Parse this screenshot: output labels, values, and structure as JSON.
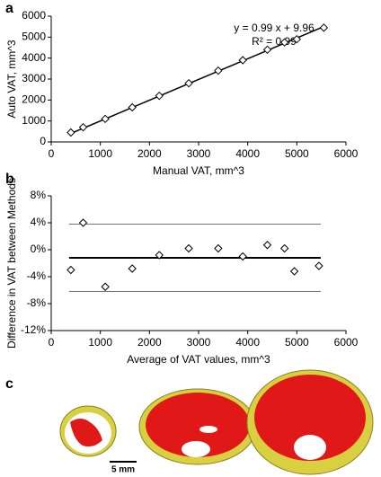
{
  "chart_data": [
    {
      "type": "scatter",
      "label": "a",
      "x_label": "Manual VAT, mm^3",
      "y_label": "Auto VAT, mm^3",
      "x": [
        400,
        650,
        1100,
        1650,
        2200,
        2800,
        3400,
        3900,
        4400,
        4750,
        5000,
        5550
      ],
      "values": [
        450,
        700,
        1100,
        1650,
        2200,
        2800,
        3400,
        3900,
        4400,
        4750,
        4900,
        5450
      ],
      "xlim": [
        0,
        6000
      ],
      "xticks": [
        0,
        1000,
        2000,
        3000,
        4000,
        5000,
        6000
      ],
      "ylim": [
        0,
        6000
      ],
      "yticks": [
        0,
        1000,
        2000,
        3000,
        4000,
        5000,
        6000
      ],
      "fit": {
        "equation": "y = 0.99 x + 9.96",
        "r2": "R² = 0.99",
        "slope": 0.99,
        "intercept": 9.96
      }
    },
    {
      "type": "scatter",
      "label": "b",
      "x_label": "Average of VAT values, mm^3",
      "y_label": "Difference in VAT between Methods",
      "x": [
        400,
        650,
        1100,
        1650,
        2200,
        2800,
        3400,
        3900,
        4400,
        4750,
        4950,
        5450
      ],
      "values": [
        -3,
        4,
        -5.5,
        -2.8,
        -0.8,
        0.2,
        0.2,
        -1,
        0.7,
        0.2,
        -3.2,
        -2.4
      ],
      "xlim": [
        0,
        6000
      ],
      "xticks": [
        0,
        1000,
        2000,
        3000,
        4000,
        5000,
        6000
      ],
      "ylim": [
        -12,
        8
      ],
      "yticks": [
        {
          "value": -12,
          "label": "-12%"
        },
        {
          "value": -8,
          "label": "-8%"
        },
        {
          "value": -4,
          "label": "-4%"
        },
        {
          "value": 0,
          "label": "0%"
        },
        {
          "value": 4,
          "label": "4%"
        },
        {
          "value": 8,
          "label": "8%"
        }
      ],
      "reference_lines": [
        3.8,
        -1.2,
        -6.2
      ]
    }
  ],
  "panel_c": {
    "label": "c",
    "scale_label": "5 mm"
  }
}
